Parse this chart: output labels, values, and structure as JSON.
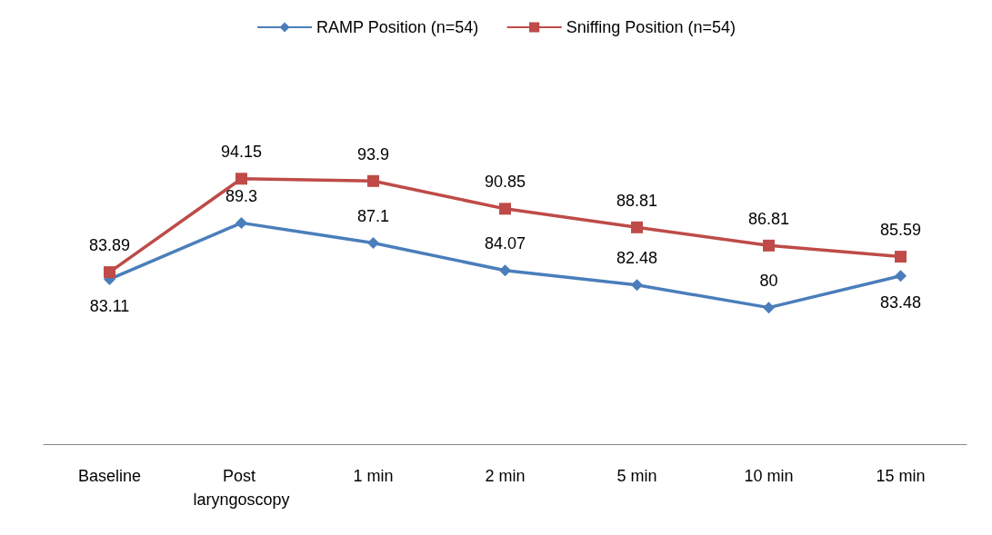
{
  "chart_data": {
    "type": "line",
    "categories": [
      "Baseline",
      "Post laryngoscopy",
      "1 min",
      "2 min",
      "5 min",
      "10 min",
      "15 min"
    ],
    "series": [
      {
        "name": "RAMP Position (n=54)",
        "color": "#4a7ebb",
        "marker": "diamond",
        "values": [
          83.11,
          89.3,
          87.1,
          84.07,
          82.48,
          80,
          83.48
        ]
      },
      {
        "name": "Sniffing Position (n=54)",
        "color": "#be4b48",
        "marker": "square",
        "values": [
          83.89,
          94.15,
          93.9,
          90.85,
          88.81,
          86.81,
          85.59
        ]
      }
    ],
    "data_labels": true,
    "legend": "top",
    "grid": false
  }
}
